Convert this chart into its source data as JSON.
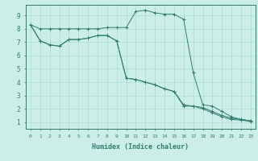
{
  "xlabel": "Humidex (Indice chaleur)",
  "bg_color": "#cceee8",
  "line_color": "#2e7d6e",
  "grid_color": "#aaddcc",
  "xlim": [
    -0.5,
    23.5
  ],
  "ylim": [
    0.5,
    9.8
  ],
  "yticks": [
    1,
    2,
    3,
    4,
    5,
    6,
    7,
    8,
    9
  ],
  "xticks": [
    0,
    1,
    2,
    3,
    4,
    5,
    6,
    7,
    8,
    9,
    10,
    11,
    12,
    13,
    14,
    15,
    16,
    17,
    18,
    19,
    20,
    21,
    22,
    23
  ],
  "series": [
    {
      "x": [
        0,
        1,
        2,
        3,
        4,
        5,
        6,
        7,
        8,
        9,
        10,
        11,
        12,
        13,
        14,
        15,
        16,
        17,
        18,
        19,
        20,
        21,
        22,
        23
      ],
      "y": [
        8.3,
        8.0,
        8.0,
        8.0,
        8.0,
        8.0,
        8.0,
        8.0,
        8.1,
        8.1,
        8.1,
        9.3,
        9.4,
        9.2,
        9.1,
        9.1,
        8.7,
        4.7,
        2.3,
        2.2,
        1.8,
        1.4,
        1.2,
        1.1
      ]
    },
    {
      "x": [
        0,
        1,
        2,
        3,
        4,
        5,
        6,
        7,
        8,
        9,
        10,
        11,
        12,
        13,
        14,
        15,
        16,
        17,
        18,
        19,
        20,
        21,
        22,
        23
      ],
      "y": [
        8.3,
        7.1,
        6.8,
        6.7,
        7.2,
        7.2,
        7.3,
        7.5,
        7.5,
        7.1,
        4.3,
        4.2,
        4.0,
        3.8,
        3.5,
        3.3,
        2.3,
        2.2,
        2.1,
        1.8,
        1.5,
        1.3,
        1.2,
        1.1
      ]
    },
    {
      "x": [
        0,
        1,
        2,
        3,
        4,
        5,
        6,
        7,
        8,
        9,
        10,
        11,
        12,
        13,
        14,
        15,
        16,
        17,
        18,
        19,
        20,
        21,
        22,
        23
      ],
      "y": [
        8.3,
        7.1,
        6.8,
        6.7,
        7.2,
        7.2,
        7.3,
        7.5,
        7.5,
        7.1,
        4.3,
        4.2,
        4.0,
        3.8,
        3.5,
        3.3,
        2.2,
        2.2,
        2.0,
        1.7,
        1.4,
        1.2,
        1.15,
        1.05
      ]
    }
  ]
}
